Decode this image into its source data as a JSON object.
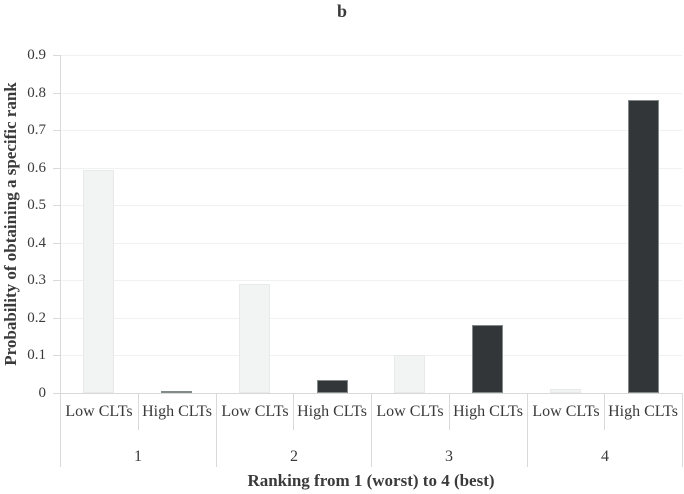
{
  "figure": {
    "title": "b"
  },
  "chart_data": {
    "type": "bar",
    "title": "b",
    "xlabel": "Ranking from 1 (worst) to 4 (best)",
    "ylabel": "Probability of obtaining a specific rank",
    "categories": [
      "1",
      "2",
      "3",
      "4"
    ],
    "subcategories": [
      "Low CLTs",
      "High CLTs"
    ],
    "series": [
      {
        "name": "Low CLTs",
        "values": [
          0.595,
          0.29,
          0.1,
          0.01
        ],
        "fill": "#f2f4f3",
        "border": "#e7eae8"
      },
      {
        "name": "High CLTs",
        "values": [
          0.005,
          0.035,
          0.18,
          0.78
        ],
        "fill": "#333639",
        "border": "#828b8a"
      }
    ],
    "ylim": [
      0,
      0.9
    ],
    "ytick_labels": [
      "0.9",
      "0.8",
      "0.7",
      "0.6",
      "0.5",
      "0.4",
      "0.3",
      "0.2",
      "0.1",
      "0"
    ],
    "grid": true,
    "legend": "none",
    "colors": {
      "gridline": "#f1f1f1",
      "axis": "#d9d9d9",
      "text": "#3a3a3a",
      "background": "#ffffff"
    }
  }
}
